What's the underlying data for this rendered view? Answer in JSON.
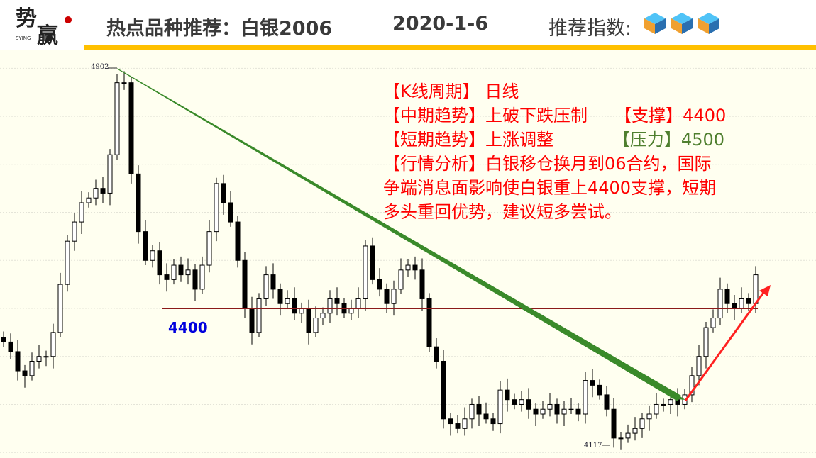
{
  "header": {
    "logo_text": "势赢 SYING",
    "title": "热点品种推荐：白银2006",
    "date": "2020-1-6",
    "rating_label": "推荐指数:",
    "rating_count": 3,
    "rating_icon": "cube-icon"
  },
  "notes": {
    "line1_tag": "【K线周期】",
    "line1_val": " 日线",
    "line2_tag": "【中期趋势】",
    "line2_val": "上破下跌压制",
    "support_tag": "【支撑】",
    "support_val": "4400",
    "line3_tag": "【短期趋势】",
    "line3_val": "上涨调整",
    "resist_tag": "【压力】",
    "resist_val": "4500",
    "analysis_tag": "【行情分析】",
    "analysis_line1": "白银移仓换月到06合约，国际",
    "analysis_line2": "争端消息面影响使白银重上4400支撑，短期",
    "analysis_line3": "多头重回优势，建议短多尝试。"
  },
  "colors": {
    "up": "#ffffff",
    "down": "#000000",
    "support_line": "#8b1a1a",
    "downtrend": "#3a8a2a",
    "uptrend_arrow": "#ff2020",
    "accent": "#ffc000"
  },
  "chart_data": {
    "type": "candlestick",
    "title": "",
    "ylim": [
      4100,
      4920
    ],
    "grid": true,
    "annotations": {
      "high_label": "4902",
      "low_label": "4117",
      "support_label": "4400",
      "support_level": 4400
    },
    "closes": [
      4330,
      4310,
      4270,
      4260,
      4290,
      4300,
      4300,
      4350,
      4450,
      4540,
      4580,
      4620,
      4630,
      4650,
      4640,
      4720,
      4870,
      4870,
      4680,
      4560,
      4500,
      4520,
      4470,
      4460,
      4490,
      4470,
      4480,
      4440,
      4490,
      4560,
      4660,
      4620,
      4580,
      4500,
      4400,
      4350,
      4420,
      4470,
      4440,
      4410,
      4420,
      4390,
      4400,
      4350,
      4380,
      4390,
      4420,
      4410,
      4390,
      4400,
      4420,
      4530,
      4460,
      4440,
      4410,
      4440,
      4480,
      4490,
      4480,
      4420,
      4320,
      4290,
      4170,
      4160,
      4150,
      4170,
      4200,
      4180,
      4170,
      4160,
      4230,
      4210,
      4200,
      4210,
      4190,
      4180,
      4190,
      4200,
      4180,
      4190,
      4190,
      4180,
      4250,
      4240,
      4220,
      4190,
      4130,
      4130,
      4140,
      4150,
      4170,
      4180,
      4200,
      4200,
      4210,
      4200,
      4220,
      4260,
      4300,
      4360,
      4380,
      4440,
      4410,
      4400,
      4420,
      4410,
      4470
    ]
  }
}
